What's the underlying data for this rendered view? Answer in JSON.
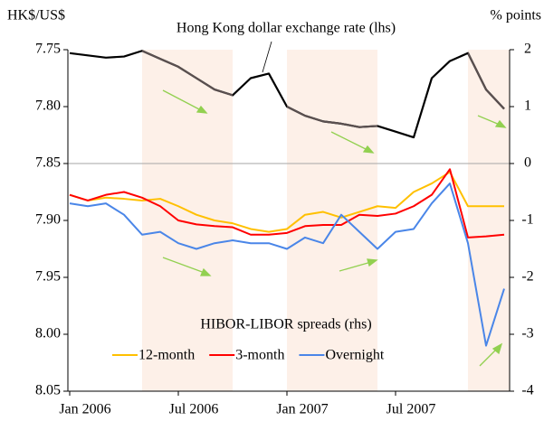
{
  "chart_data": {
    "type": "line",
    "y_label": "HK$/US$",
    "y2_label": "% points",
    "annotations": [
      "Hong Kong dollar exchange rate (lhs)",
      "HIBOR-LIBOR spreads (rhs)"
    ],
    "x": [
      "2006-01",
      "2006-02",
      "2006-03",
      "2006-04",
      "2006-05",
      "2006-06",
      "2006-07",
      "2006-08",
      "2006-09",
      "2006-10",
      "2006-11",
      "2006-12",
      "2007-01",
      "2007-02",
      "2007-03",
      "2007-04",
      "2007-05",
      "2007-06",
      "2007-07",
      "2007-08",
      "2007-09",
      "2007-10",
      "2007-11",
      "2007-12",
      "2008-01"
    ],
    "xlim": [
      "2006-01",
      "2008-01"
    ],
    "xticks": [
      {
        "value": "2006-01",
        "label": "Jan 2006"
      },
      {
        "value": "2006-07",
        "label": "Jul 2006"
      },
      {
        "value": "2007-01",
        "label": "Jan 2007"
      },
      {
        "value": "2007-07",
        "label": "Jul 2007"
      }
    ],
    "shaded_periods": [
      [
        "2006-05",
        "2006-10"
      ],
      [
        "2007-01",
        "2007-06"
      ],
      [
        "2007-11",
        "2008-01"
      ]
    ],
    "shade_color": "#fdf0e8",
    "ylim": [
      7.75,
      8.05
    ],
    "y_inverted": true,
    "yticks": [
      {
        "value": 7.75,
        "label": "7.75"
      },
      {
        "value": 7.8,
        "label": "7.80"
      },
      {
        "value": 7.85,
        "label": "7.85"
      },
      {
        "value": 7.9,
        "label": "7.90"
      },
      {
        "value": 7.95,
        "label": "7.95"
      },
      {
        "value": 8.0,
        "label": "8.00"
      },
      {
        "value": 8.05,
        "label": "8.05"
      }
    ],
    "y2lim": [
      -4,
      2
    ],
    "y2ticks": [
      2,
      1,
      0,
      -1,
      -2,
      -3,
      -4
    ],
    "zero_line": true,
    "series": [
      {
        "name": "Hong Kong dollar exchange rate",
        "color": "#000000",
        "shaded_color": "#5a5050",
        "values": [
          7.753,
          7.755,
          7.757,
          7.756,
          7.751,
          7.758,
          7.765,
          7.775,
          7.785,
          7.79,
          7.775,
          7.771,
          7.8,
          7.808,
          7.813,
          7.815,
          7.818,
          7.817,
          7.822,
          7.827,
          7.775,
          7.76,
          7.753,
          7.785,
          7.802
        ]
      },
      {
        "name": "12-month",
        "color": "#ffc000",
        "axis": "y2",
        "values": [
          -0.55,
          -0.65,
          -0.6,
          -0.62,
          -0.65,
          -0.62,
          -0.75,
          -0.9,
          -1.0,
          -1.05,
          -1.15,
          -1.2,
          -1.15,
          -0.9,
          -0.85,
          -0.95,
          -0.85,
          -0.75,
          -0.78,
          -0.5,
          -0.35,
          -0.15,
          -0.75,
          -0.75,
          -0.75
        ]
      },
      {
        "name": "3-month",
        "color": "#ff0000",
        "axis": "y2",
        "values": [
          -0.55,
          -0.65,
          -0.55,
          -0.5,
          -0.6,
          -0.75,
          -1.0,
          -1.07,
          -1.1,
          -1.12,
          -1.25,
          -1.25,
          -1.22,
          -1.1,
          -1.08,
          -1.08,
          -0.9,
          -0.92,
          -0.88,
          -0.75,
          -0.55,
          -0.1,
          -1.3,
          -1.28,
          -1.25
        ]
      },
      {
        "name": "Overnight",
        "color": "#4a86e8",
        "axis": "y2",
        "values": [
          -0.7,
          -0.75,
          -0.7,
          -0.9,
          -1.25,
          -1.2,
          -1.4,
          -1.5,
          -1.4,
          -1.35,
          -1.4,
          -1.4,
          -1.5,
          -1.3,
          -1.4,
          -0.9,
          -1.2,
          -1.5,
          -1.2,
          -1.15,
          -0.7,
          -0.35,
          -1.4,
          -3.2,
          -2.2
        ]
      }
    ]
  }
}
